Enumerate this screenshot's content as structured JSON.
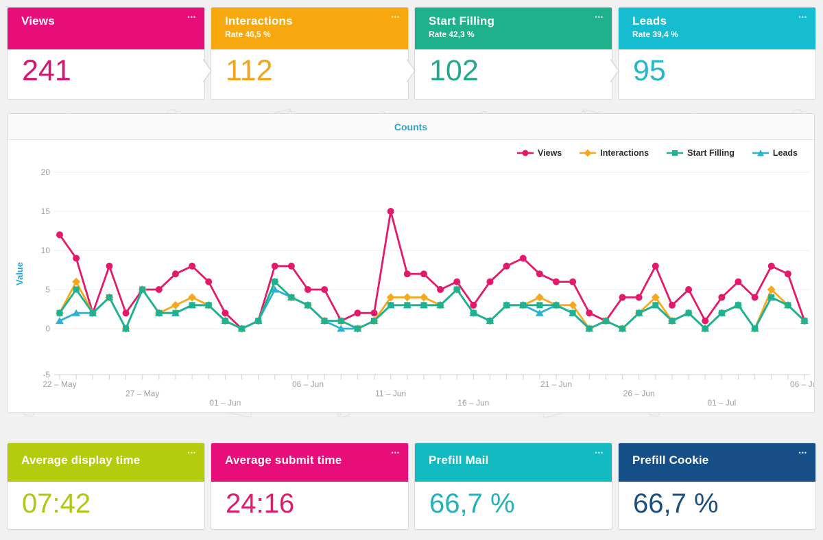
{
  "menu_dots": "•••",
  "funnel_cards": [
    {
      "title": "Views",
      "rate": "",
      "value": "241",
      "color": "#e80e7a",
      "value_color": "#d4166f"
    },
    {
      "title": "Interactions",
      "rate": "Rate 46,5 %",
      "value": "112",
      "color": "#f7a80f",
      "value_color": "#f1a51d"
    },
    {
      "title": "Start Filling",
      "rate": "Rate 42,3 %",
      "value": "102",
      "color": "#1fb08c",
      "value_color": "#27a88a"
    },
    {
      "title": "Leads",
      "rate": "Rate 39,4 %",
      "value": "95",
      "color": "#16bcd0",
      "value_color": "#25b6c9"
    }
  ],
  "stat_cards": [
    {
      "title": "Average display time",
      "value": "07:42",
      "color": "#b5cc0e",
      "value_color": "#b0c717"
    },
    {
      "title": "Average submit time",
      "value": "24:16",
      "color": "#e80e7a",
      "value_color": "#e01a6d"
    },
    {
      "title": "Prefill Mail",
      "value": "66,7 %",
      "color": "#12bac2",
      "value_color": "#21b2ba"
    },
    {
      "title": "Prefill Cookie",
      "value": "66,7 %",
      "color": "#164f87",
      "value_color": "#1c4f7e"
    }
  ],
  "chart_data": {
    "type": "line",
    "title": "Counts",
    "ylabel": "Value",
    "ylim": [
      -5,
      20
    ],
    "yticks": [
      20,
      15,
      10,
      5,
      0,
      -5
    ],
    "grid": true,
    "legend_position": "top-right",
    "x_tick_labels": [
      "22 – May",
      "27 – May",
      "01 – Jun",
      "06 – Jun",
      "11 – Jun",
      "16 – Jun",
      "21 – Jun",
      "26 – Jun",
      "01 – Jul",
      "06 – Jul"
    ],
    "dates": [
      "22 May",
      "23 May",
      "24 May",
      "25 May",
      "26 May",
      "27 May",
      "28 May",
      "29 May",
      "30 May",
      "31 May",
      "01 Jun",
      "02 Jun",
      "03 Jun",
      "04 Jun",
      "05 Jun",
      "06 Jun",
      "07 Jun",
      "08 Jun",
      "09 Jun",
      "10 Jun",
      "11 Jun",
      "12 Jun",
      "13 Jun",
      "14 Jun",
      "15 Jun",
      "16 Jun",
      "17 Jun",
      "18 Jun",
      "19 Jun",
      "20 Jun",
      "21 Jun",
      "22 Jun",
      "23 Jun",
      "24 Jun",
      "25 Jun",
      "26 Jun",
      "27 Jun",
      "28 Jun",
      "29 Jun",
      "30 Jun",
      "01 Jul",
      "02 Jul",
      "03 Jul",
      "04 Jul",
      "05 Jul",
      "06 Jul"
    ],
    "series": [
      {
        "name": "Views",
        "color": "#e31a6a",
        "marker": "circle",
        "values": [
          12,
          9,
          2,
          8,
          2,
          5,
          5,
          7,
          8,
          6,
          2,
          0,
          1,
          8,
          8,
          5,
          5,
          1,
          2,
          2,
          15,
          7,
          7,
          5,
          6,
          3,
          6,
          8,
          9,
          7,
          6,
          6,
          2,
          1,
          4,
          4,
          8,
          3,
          5,
          1,
          4,
          6,
          4,
          8,
          7,
          1
        ]
      },
      {
        "name": "Interactions",
        "color": "#f6a91e",
        "marker": "diamond",
        "values": [
          2,
          6,
          2,
          4,
          0,
          5,
          2,
          3,
          4,
          3,
          1,
          0,
          1,
          6,
          4,
          3,
          1,
          1,
          0,
          1,
          4,
          4,
          4,
          3,
          5,
          2,
          1,
          3,
          3,
          4,
          3,
          3,
          0,
          1,
          0,
          2,
          4,
          1,
          2,
          0,
          2,
          3,
          0,
          5,
          3,
          1
        ]
      },
      {
        "name": "Start Filling",
        "color": "#1eb293",
        "marker": "square",
        "values": [
          2,
          5,
          2,
          4,
          0,
          5,
          2,
          2,
          3,
          3,
          1,
          0,
          1,
          6,
          4,
          3,
          1,
          1,
          0,
          1,
          3,
          3,
          3,
          3,
          5,
          2,
          1,
          3,
          3,
          3,
          3,
          2,
          0,
          1,
          0,
          2,
          3,
          1,
          2,
          0,
          2,
          3,
          0,
          4,
          3,
          1
        ]
      },
      {
        "name": "Leads",
        "color": "#2cb3d4",
        "marker": "triangle",
        "values": [
          1,
          2,
          2,
          4,
          0,
          5,
          2,
          2,
          3,
          3,
          1,
          0,
          1,
          5,
          4,
          3,
          1,
          0,
          0,
          1,
          3,
          3,
          3,
          3,
          5,
          2,
          1,
          3,
          3,
          2,
          3,
          2,
          0,
          1,
          0,
          2,
          3,
          1,
          2,
          0,
          2,
          3,
          0,
          4,
          3,
          1
        ]
      }
    ]
  }
}
